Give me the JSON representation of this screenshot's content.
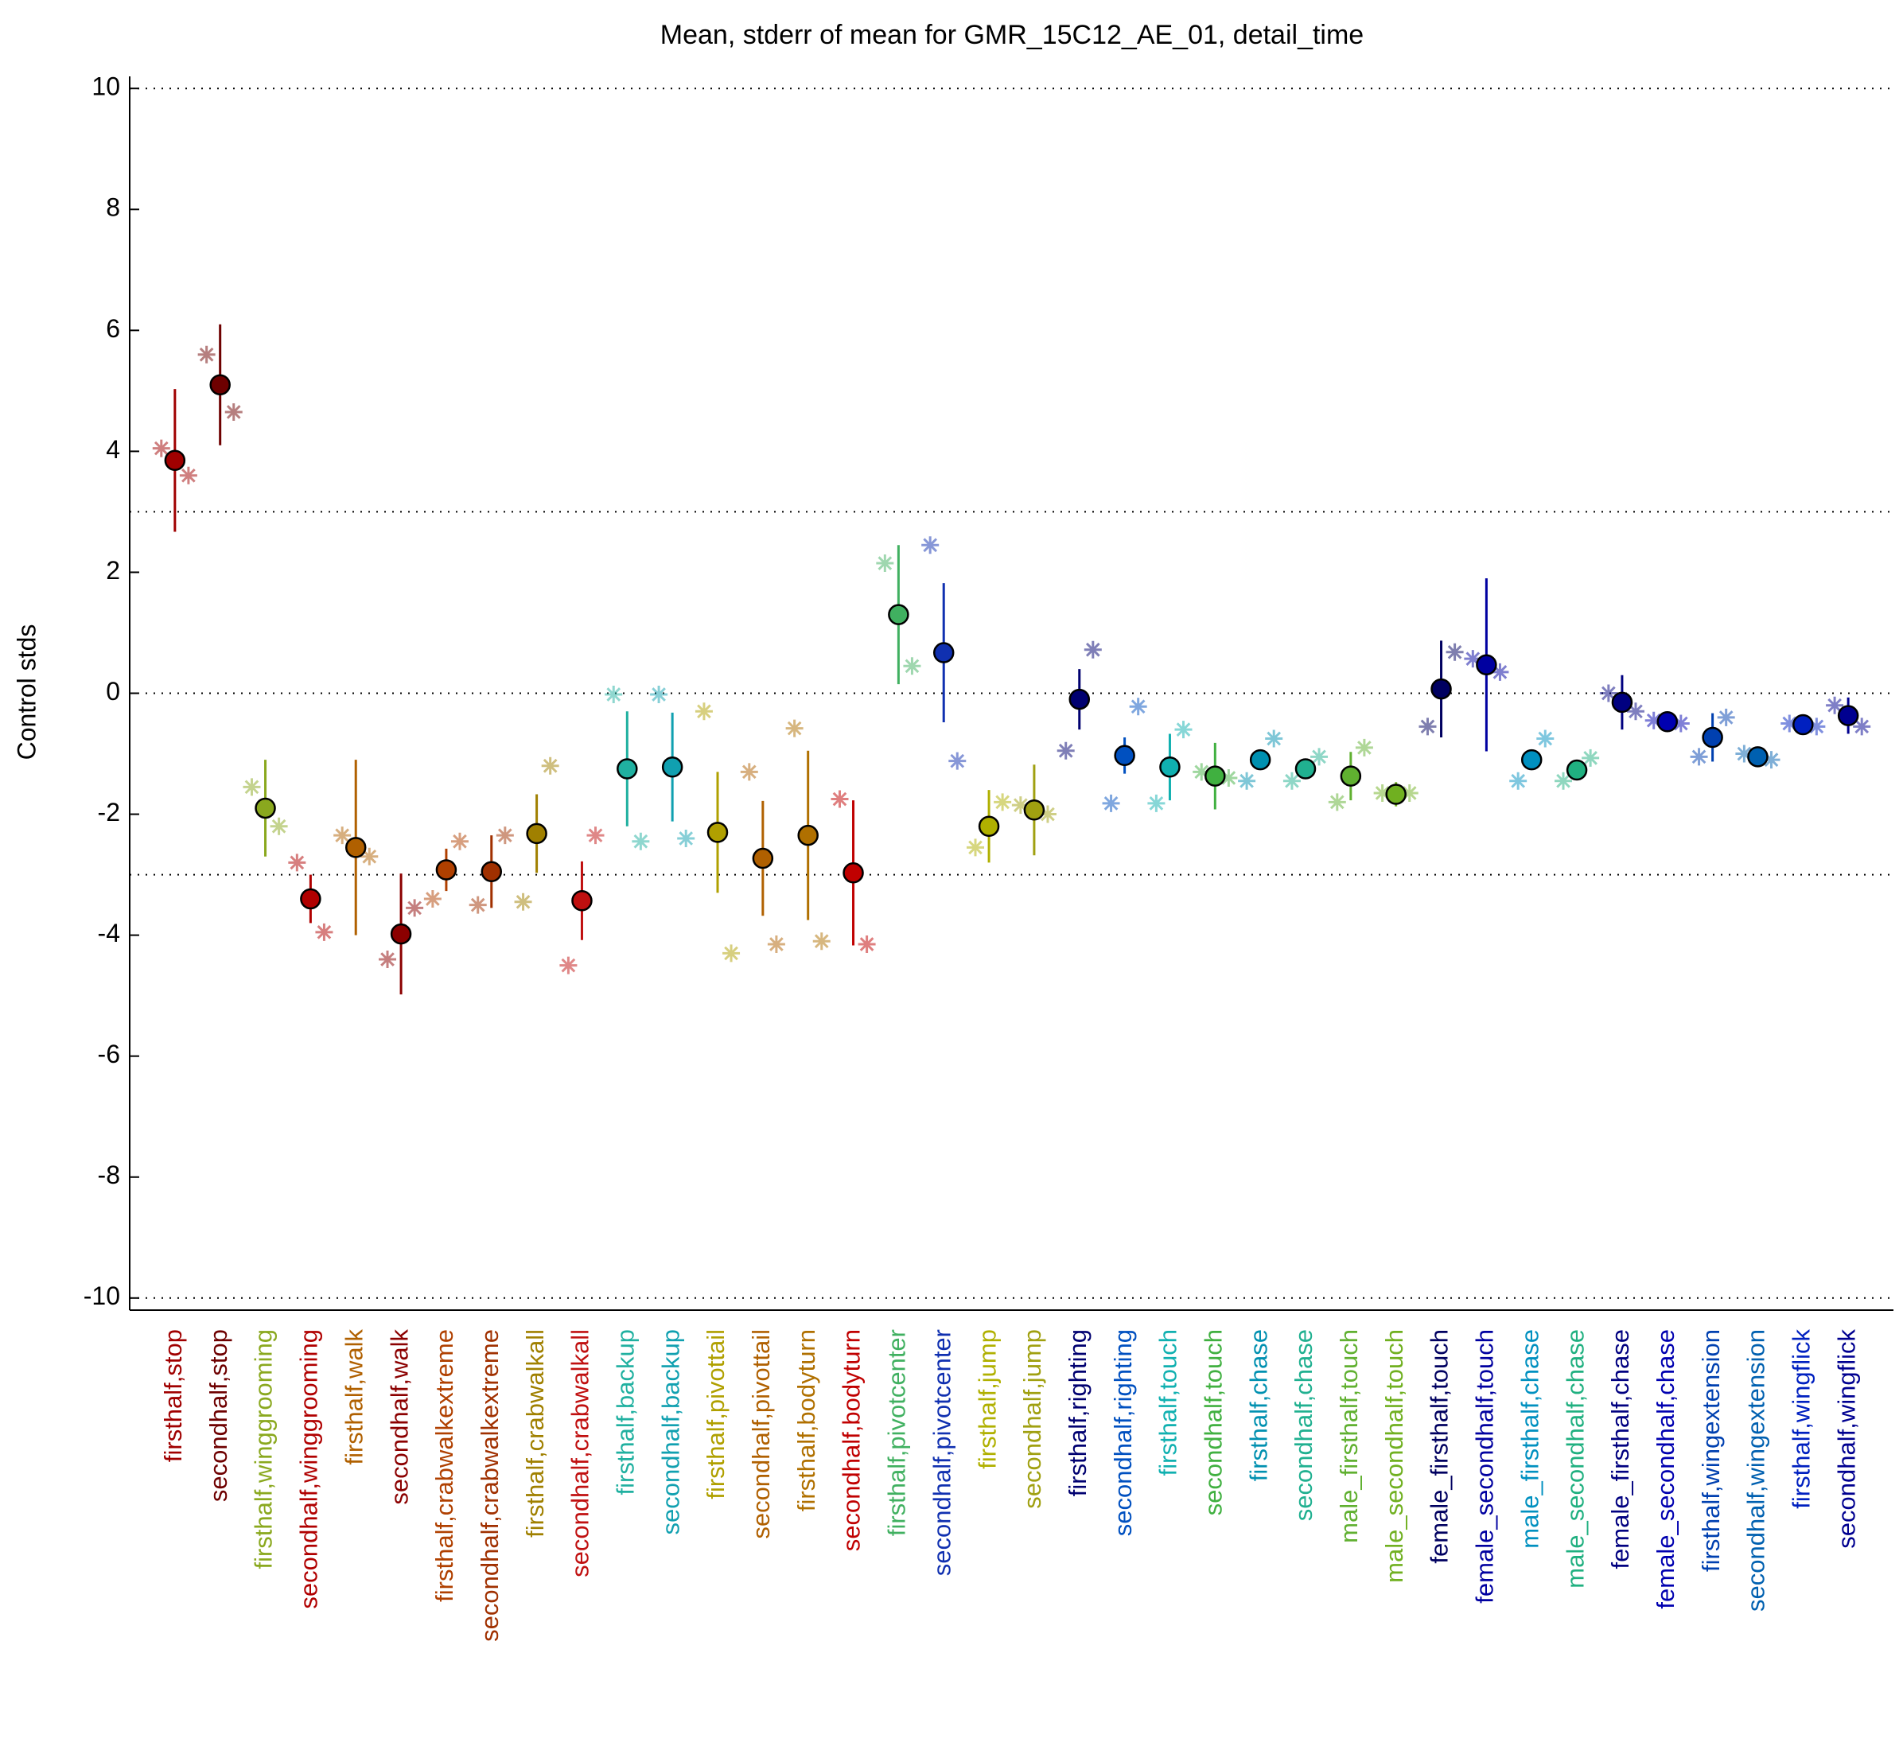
{
  "chart_data": {
    "type": "errorbar",
    "title": "Mean, stderr of mean for GMR_15C12_AE_01, detail_time",
    "y_label": "Control stds",
    "categories": [
      "firsthalf,stop",
      "secondhalf,stop",
      "firsthalf,winggrooming",
      "secondhalf,winggrooming",
      "firsthalf,walk",
      "secondhalf,walk",
      "firsthalf,crabwalkextreme",
      "secondhalf,crabwalkextreme",
      "firsthalf,crabwalkall",
      "secondhalf,crabwalkall",
      "firsthalf,backup",
      "secondhalf,backup",
      "firsthalf,pivottail",
      "secondhalf,pivottail",
      "firsthalf,bodyturn",
      "secondhalf,bodyturn",
      "firsthalf,pivotcenter",
      "secondhalf,pivotcenter",
      "firsthalf,jump",
      "secondhalf,jump",
      "firsthalf,righting",
      "secondhalf,righting",
      "firsthalf,touch",
      "secondhalf,touch",
      "firsthalf,chase",
      "secondhalf,chase",
      "male_firsthalf,touch",
      "male_secondhalf,touch",
      "female_firsthalf,touch",
      "female_secondhalf,touch",
      "male_firsthalf,chase",
      "male_secondhalf,chase",
      "female_firsthalf,chase",
      "female_secondhalf,chase",
      "firsthalf,wingextension",
      "secondhalf,wingextension",
      "firsthalf,wingflick",
      "secondhalf,wingflick"
    ],
    "values": [
      3.85,
      5.1,
      -1.9,
      -3.4,
      -2.55,
      -3.98,
      -2.92,
      -2.95,
      -2.32,
      -3.43,
      -1.25,
      -1.22,
      -2.3,
      -2.73,
      -2.35,
      -2.97,
      1.3,
      0.67,
      -2.2,
      -1.93,
      -0.1,
      -1.03,
      -1.22,
      -1.37,
      -1.1,
      -1.25,
      -1.37,
      -1.67,
      0.07,
      0.47,
      -1.1,
      -1.27,
      -0.15,
      -0.47,
      -0.73,
      -1.05,
      -0.52,
      -0.37
    ],
    "errors": [
      1.18,
      1.0,
      0.8,
      0.4,
      1.45,
      1.0,
      0.35,
      0.6,
      0.65,
      0.65,
      0.95,
      0.9,
      1.0,
      0.95,
      1.4,
      1.2,
      1.15,
      1.15,
      0.6,
      0.75,
      0.5,
      0.3,
      0.55,
      0.55,
      0.1,
      0.1,
      0.4,
      0.2,
      0.8,
      1.43,
      0.1,
      0.1,
      0.45,
      0.15,
      0.4,
      0.05,
      0.1,
      0.3
    ],
    "left_stars": [
      4.05,
      5.6,
      -1.55,
      -2.8,
      -2.35,
      -4.4,
      -3.4,
      -3.5,
      -3.45,
      -4.5,
      -0.02,
      -0.02,
      -0.3,
      -1.3,
      -0.58,
      -1.75,
      2.15,
      2.45,
      -2.55,
      -1.85,
      -0.95,
      -1.82,
      -1.82,
      -1.3,
      -1.45,
      -1.45,
      -1.8,
      -1.65,
      -0.55,
      0.57,
      -1.45,
      -1.45,
      0.0,
      -0.45,
      -1.05,
      -1.0,
      -0.5,
      -0.2
    ],
    "right_stars": [
      3.6,
      4.65,
      -2.2,
      -3.95,
      -2.7,
      -3.55,
      -2.45,
      -2.35,
      -1.2,
      -2.35,
      -2.45,
      -2.4,
      -4.3,
      -4.15,
      -4.1,
      -4.15,
      0.45,
      -1.12,
      -1.8,
      -2.0,
      0.72,
      -0.22,
      -0.6,
      -1.4,
      -0.75,
      -1.05,
      -0.9,
      -1.65,
      0.68,
      0.35,
      -0.75,
      -1.07,
      -0.3,
      -0.5,
      -0.4,
      -1.1,
      -0.55,
      -0.55
    ],
    "colors": [
      "#a00000",
      "#6e0000",
      "#8aa81e",
      "#b00000",
      "#b06000",
      "#8b0000",
      "#b04000",
      "#a03000",
      "#a08000",
      "#c01010",
      "#20b0a0",
      "#10a0b0",
      "#b0a000",
      "#b06000",
      "#b07000",
      "#c00000",
      "#40b060",
      "#1030b0",
      "#b0b000",
      "#a0a010",
      "#000070",
      "#0050c0",
      "#10b0b0",
      "#40b040",
      "#0090b0",
      "#20b090",
      "#60b030",
      "#70b020",
      "#000060",
      "#0000a0",
      "#0090c0",
      "#20b080",
      "#000080",
      "#0000b0",
      "#0040b0",
      "#0060b0",
      "#0020c0",
      "#000090"
    ],
    "ylim": [
      -10.2,
      10.2
    ],
    "yticks": [
      -10,
      -8,
      -6,
      -4,
      -2,
      0,
      2,
      4,
      6,
      8,
      10
    ],
    "reference_lines": [
      10,
      3,
      0,
      -3,
      -10
    ]
  }
}
